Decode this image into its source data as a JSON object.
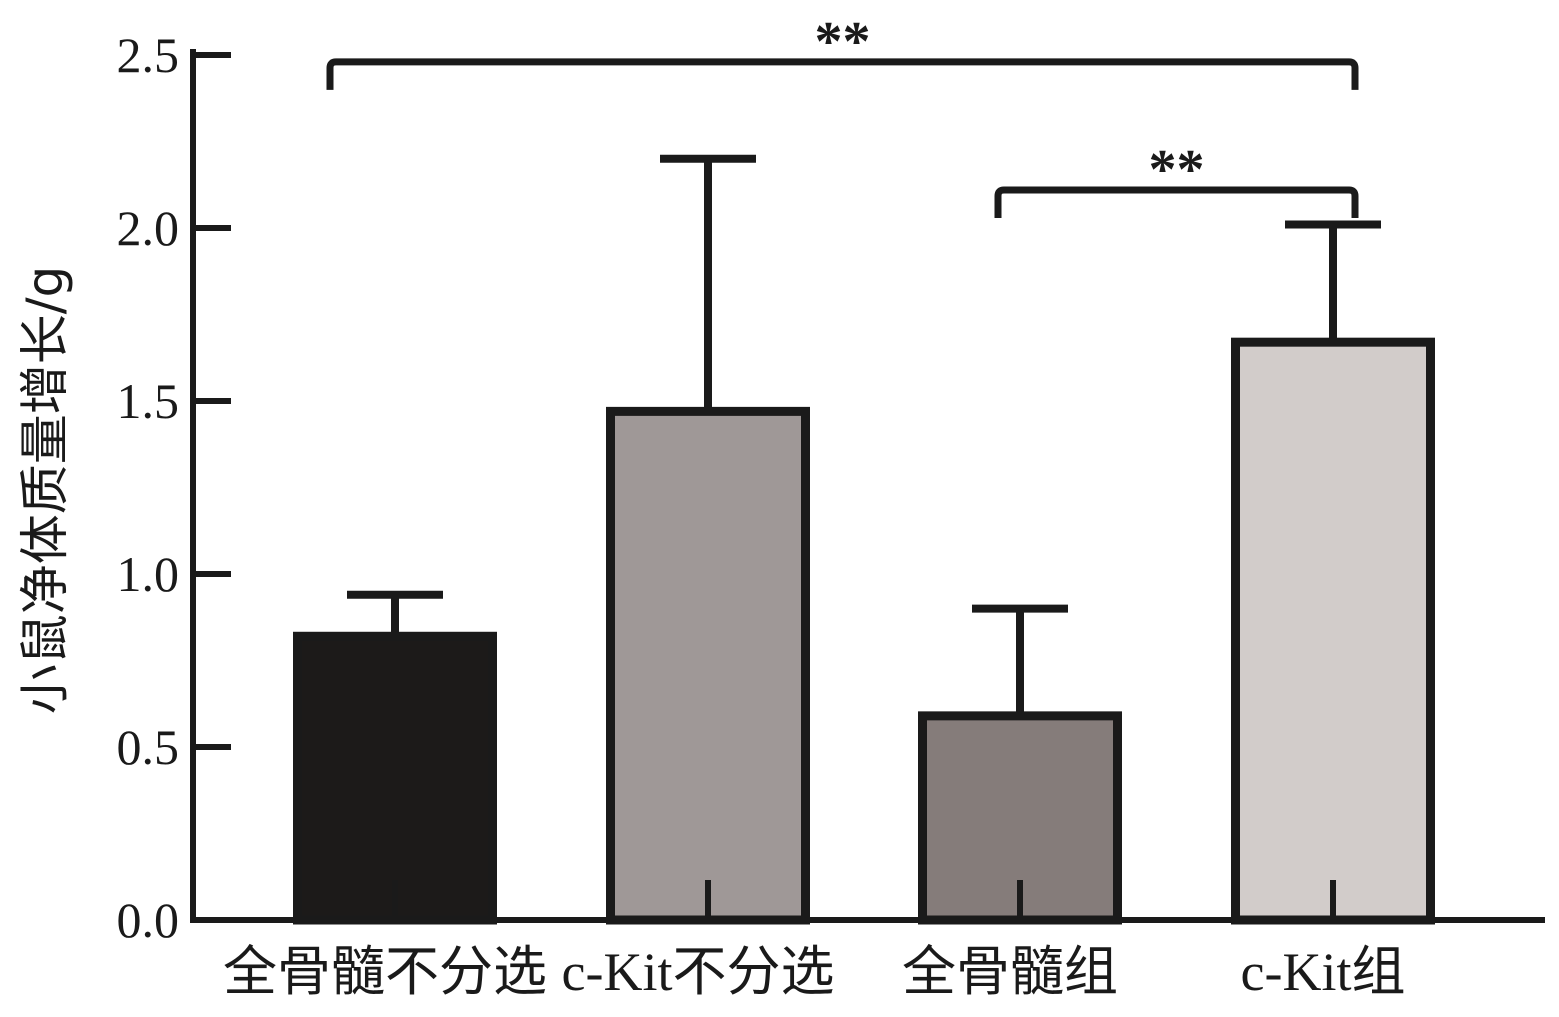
{
  "chart_data": {
    "type": "bar",
    "title": "",
    "xlabel": "",
    "ylabel": "小鼠净体质量增长/g",
    "ylim": [
      0,
      2.5
    ],
    "yticks": [
      "0.0",
      "0.5",
      "1.0",
      "1.5",
      "2.0",
      "2.5"
    ],
    "categories": [
      "全骨髓不分选",
      "c-Kit不分选",
      "全骨髓组",
      "c-Kit组"
    ],
    "values": [
      0.82,
      1.47,
      0.59,
      1.67
    ],
    "errors": [
      0.12,
      0.73,
      0.31,
      0.34
    ],
    "colors": [
      "#1c1a19",
      "#9f9897",
      "#857c7a",
      "#d2ccca"
    ],
    "significance": [
      {
        "from": 0,
        "to": 3,
        "label": "**",
        "y": 2.48
      },
      {
        "from": 2,
        "to": 3,
        "label": "**",
        "y": 2.11
      }
    ],
    "grid": false,
    "legend": "none"
  }
}
